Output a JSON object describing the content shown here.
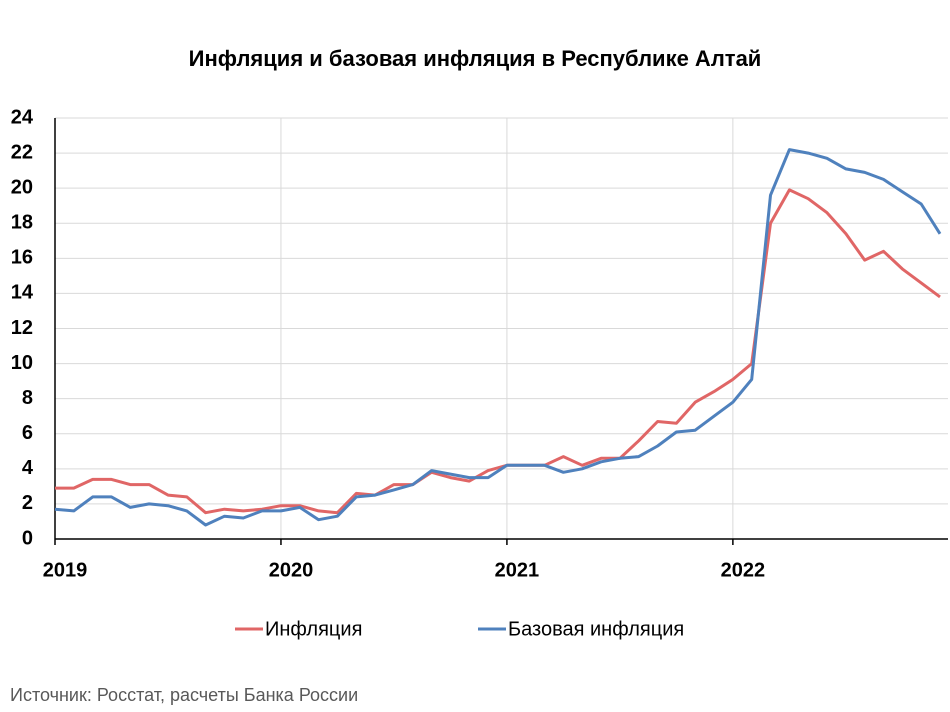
{
  "chart_data": {
    "type": "line",
    "title": "Инфляция и базовая инфляция в Республике Алтай",
    "source": "Источник: Росстат, расчеты Банка России",
    "categories": [
      "2019",
      null,
      null,
      null,
      null,
      null,
      null,
      null,
      null,
      null,
      null,
      null,
      "2020",
      null,
      null,
      null,
      null,
      null,
      null,
      null,
      null,
      null,
      null,
      null,
      "2021",
      null,
      null,
      null,
      null,
      null,
      null,
      null,
      null,
      null,
      null,
      null,
      "2022",
      null,
      null,
      null,
      null,
      null,
      null,
      null,
      null,
      null,
      null,
      null
    ],
    "series": [
      {
        "name": "Инфляция",
        "color": "#e06666",
        "values": [
          2.9,
          2.9,
          3.4,
          3.4,
          3.1,
          3.1,
          2.5,
          2.4,
          1.5,
          1.7,
          1.6,
          1.7,
          1.9,
          1.9,
          1.6,
          1.5,
          2.6,
          2.5,
          3.1,
          3.1,
          3.8,
          3.5,
          3.3,
          3.9,
          4.2,
          4.2,
          4.2,
          4.7,
          4.2,
          4.6,
          4.6,
          5.6,
          6.7,
          6.6,
          7.8,
          8.4,
          9.1,
          10.0,
          18.0,
          19.9,
          19.4,
          18.6,
          17.4,
          15.9,
          16.4,
          15.4,
          14.6,
          13.8
        ]
      },
      {
        "name": "Базовая инфляция",
        "color": "#4f81bd",
        "values": [
          1.7,
          1.6,
          2.4,
          2.4,
          1.8,
          2.0,
          1.9,
          1.6,
          0.8,
          1.3,
          1.2,
          1.6,
          1.6,
          1.8,
          1.1,
          1.3,
          2.4,
          2.5,
          2.8,
          3.1,
          3.9,
          3.7,
          3.5,
          3.5,
          4.2,
          4.2,
          4.2,
          3.8,
          4.0,
          4.4,
          4.6,
          4.7,
          5.3,
          6.1,
          6.2,
          7.0,
          7.8,
          9.1,
          19.6,
          22.2,
          22.0,
          21.7,
          21.1,
          20.9,
          20.5,
          19.8,
          19.1,
          17.4
        ]
      }
    ],
    "ylim": [
      0,
      24
    ],
    "yticks": [
      0,
      2,
      4,
      6,
      8,
      10,
      12,
      14,
      16,
      18,
      20,
      22,
      24
    ],
    "grid": true,
    "legend": "bottom"
  }
}
